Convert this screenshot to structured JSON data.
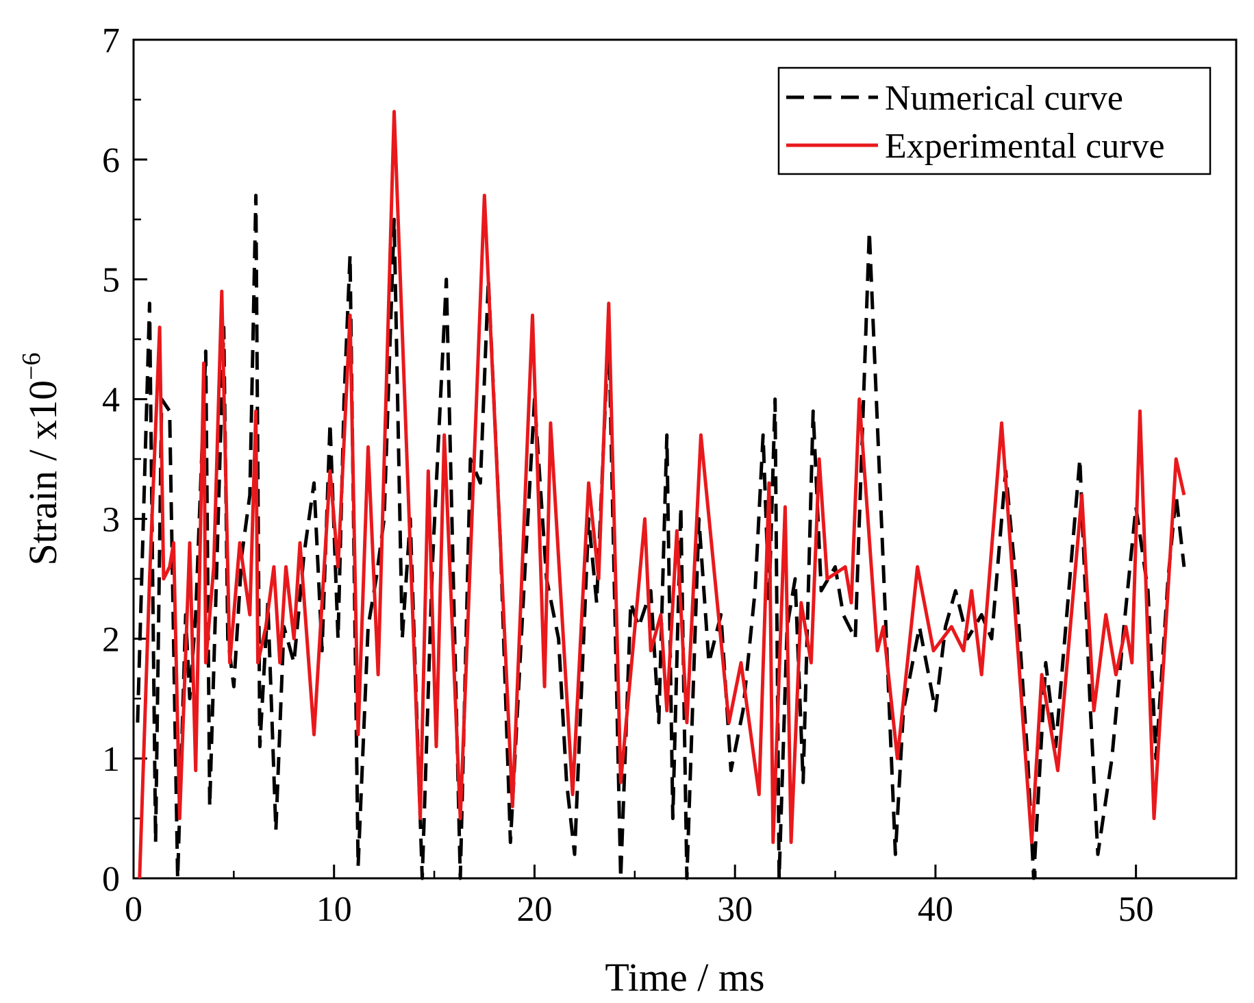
{
  "chart_data": {
    "type": "line",
    "title": "",
    "xlabel": "Time / ms",
    "ylabel_base": "Strain / x10",
    "ylabel_exp": "−6",
    "xlim": [
      0,
      55
    ],
    "ylim": [
      0,
      7
    ],
    "x_ticks": [
      0,
      10,
      20,
      30,
      40,
      50
    ],
    "x_tick_labels": [
      "0",
      "10",
      "20",
      "30",
      "40",
      "50"
    ],
    "y_ticks": [
      0,
      1,
      2,
      3,
      4,
      5,
      6,
      7
    ],
    "y_tick_labels": [
      "0",
      "1",
      "2",
      "3",
      "4",
      "5",
      "6",
      "7"
    ],
    "grid": false,
    "legend_position": "top-right",
    "series": [
      {
        "name": "Numerical curve",
        "color": "#000000",
        "style": "dashed",
        "points": [
          [
            0.2,
            1.3
          ],
          [
            0.8,
            4.8
          ],
          [
            1.1,
            0.3
          ],
          [
            1.4,
            4.0
          ],
          [
            1.8,
            3.9
          ],
          [
            2.2,
            0.0
          ],
          [
            2.6,
            2.2
          ],
          [
            2.8,
            1.5
          ],
          [
            3.1,
            2.2
          ],
          [
            3.6,
            4.4
          ],
          [
            3.8,
            0.6
          ],
          [
            4.1,
            2.3
          ],
          [
            4.5,
            4.6
          ],
          [
            4.7,
            2.0
          ],
          [
            5.0,
            1.6
          ],
          [
            5.4,
            2.7
          ],
          [
            5.8,
            3.2
          ],
          [
            6.1,
            5.7
          ],
          [
            6.3,
            1.1
          ],
          [
            6.7,
            2.3
          ],
          [
            7.1,
            0.4
          ],
          [
            7.5,
            2.1
          ],
          [
            8.0,
            1.8
          ],
          [
            8.5,
            2.7
          ],
          [
            9.0,
            3.3
          ],
          [
            9.4,
            1.9
          ],
          [
            9.8,
            3.8
          ],
          [
            10.2,
            2.0
          ],
          [
            10.5,
            4.0
          ],
          [
            10.8,
            5.2
          ],
          [
            11.2,
            0.1
          ],
          [
            11.7,
            2.1
          ],
          [
            12.1,
            2.5
          ],
          [
            12.5,
            3.0
          ],
          [
            13.0,
            5.5
          ],
          [
            13.4,
            2.0
          ],
          [
            13.8,
            3.0
          ],
          [
            14.4,
            0.0
          ],
          [
            14.9,
            2.6
          ],
          [
            15.6,
            5.0
          ],
          [
            16.3,
            0.0
          ],
          [
            16.8,
            3.5
          ],
          [
            17.3,
            3.3
          ],
          [
            17.7,
            5.0
          ],
          [
            18.3,
            2.8
          ],
          [
            18.8,
            0.3
          ],
          [
            19.5,
            2.5
          ],
          [
            20.0,
            4.0
          ],
          [
            20.6,
            2.5
          ],
          [
            21.2,
            2.0
          ],
          [
            21.6,
            0.8
          ],
          [
            22.0,
            0.2
          ],
          [
            22.7,
            3.0
          ],
          [
            23.1,
            2.3
          ],
          [
            23.7,
            4.6
          ],
          [
            24.3,
            0.0
          ],
          [
            24.8,
            2.3
          ],
          [
            25.2,
            2.1
          ],
          [
            25.8,
            2.4
          ],
          [
            26.2,
            1.3
          ],
          [
            26.6,
            3.7
          ],
          [
            26.9,
            0.5
          ],
          [
            27.3,
            3.1
          ],
          [
            27.6,
            0.0
          ],
          [
            28.2,
            3.0
          ],
          [
            28.7,
            1.8
          ],
          [
            29.3,
            2.2
          ],
          [
            29.8,
            0.9
          ],
          [
            30.4,
            1.4
          ],
          [
            31.0,
            2.4
          ],
          [
            31.4,
            3.7
          ],
          [
            31.7,
            2.3
          ],
          [
            32.0,
            4.0
          ],
          [
            32.2,
            0.0
          ],
          [
            32.6,
            2.1
          ],
          [
            33.0,
            2.5
          ],
          [
            33.4,
            0.8
          ],
          [
            33.9,
            3.9
          ],
          [
            34.3,
            2.4
          ],
          [
            35.0,
            2.6
          ],
          [
            35.4,
            2.2
          ],
          [
            36.0,
            2.0
          ],
          [
            36.7,
            5.4
          ],
          [
            37.3,
            3.0
          ],
          [
            38.0,
            0.2
          ],
          [
            38.4,
            1.4
          ],
          [
            39.2,
            2.1
          ],
          [
            40.0,
            1.4
          ],
          [
            40.5,
            2.1
          ],
          [
            41.0,
            2.4
          ],
          [
            41.6,
            2.0
          ],
          [
            42.3,
            2.2
          ],
          [
            42.8,
            2.0
          ],
          [
            43.5,
            3.4
          ],
          [
            44.0,
            2.5
          ],
          [
            44.6,
            1.0
          ],
          [
            44.9,
            0.0
          ],
          [
            45.5,
            1.8
          ],
          [
            46.0,
            1.1
          ],
          [
            46.6,
            2.3
          ],
          [
            47.2,
            3.5
          ],
          [
            47.7,
            1.5
          ],
          [
            48.1,
            0.2
          ],
          [
            48.8,
            1.0
          ],
          [
            49.4,
            2.1
          ],
          [
            50.0,
            3.1
          ],
          [
            50.6,
            2.4
          ],
          [
            51.0,
            1.0
          ],
          [
            51.6,
            2.5
          ],
          [
            52.0,
            3.2
          ],
          [
            52.4,
            2.6
          ]
        ]
      },
      {
        "name": "Experimental curve",
        "color": "#e8191c",
        "style": "solid",
        "points": [
          [
            0.3,
            0.0
          ],
          [
            0.8,
            2.5
          ],
          [
            1.3,
            4.6
          ],
          [
            1.5,
            2.5
          ],
          [
            1.8,
            2.6
          ],
          [
            2.0,
            2.8
          ],
          [
            2.3,
            0.5
          ],
          [
            2.8,
            2.8
          ],
          [
            3.1,
            0.9
          ],
          [
            3.5,
            4.3
          ],
          [
            3.6,
            1.8
          ],
          [
            4.0,
            2.6
          ],
          [
            4.4,
            4.9
          ],
          [
            4.8,
            1.8
          ],
          [
            5.3,
            2.8
          ],
          [
            5.8,
            2.2
          ],
          [
            6.1,
            3.9
          ],
          [
            6.2,
            1.8
          ],
          [
            6.6,
            2.1
          ],
          [
            7.0,
            2.6
          ],
          [
            7.3,
            1.8
          ],
          [
            7.6,
            2.6
          ],
          [
            8.0,
            2.0
          ],
          [
            8.3,
            2.8
          ],
          [
            9.0,
            1.2
          ],
          [
            9.8,
            3.4
          ],
          [
            10.2,
            2.6
          ],
          [
            10.8,
            4.7
          ],
          [
            11.2,
            1.2
          ],
          [
            11.7,
            3.6
          ],
          [
            12.2,
            1.7
          ],
          [
            13.0,
            6.4
          ],
          [
            14.3,
            0.5
          ],
          [
            14.7,
            3.4
          ],
          [
            15.1,
            1.1
          ],
          [
            15.5,
            3.7
          ],
          [
            16.3,
            0.5
          ],
          [
            17.5,
            5.7
          ],
          [
            18.9,
            0.6
          ],
          [
            19.9,
            4.7
          ],
          [
            20.5,
            1.6
          ],
          [
            20.8,
            3.8
          ],
          [
            21.9,
            0.7
          ],
          [
            22.7,
            3.3
          ],
          [
            23.2,
            2.5
          ],
          [
            23.7,
            4.8
          ],
          [
            24.3,
            0.8
          ],
          [
            25.5,
            3.0
          ],
          [
            25.8,
            1.9
          ],
          [
            26.3,
            2.2
          ],
          [
            26.6,
            1.4
          ],
          [
            27.1,
            2.9
          ],
          [
            27.6,
            1.3
          ],
          [
            28.3,
            3.7
          ],
          [
            29.7,
            1.3
          ],
          [
            30.3,
            1.8
          ],
          [
            31.2,
            0.7
          ],
          [
            31.7,
            3.3
          ],
          [
            31.9,
            0.3
          ],
          [
            32.5,
            3.1
          ],
          [
            32.8,
            0.3
          ],
          [
            33.3,
            2.3
          ],
          [
            33.8,
            1.8
          ],
          [
            34.2,
            3.5
          ],
          [
            34.6,
            2.5
          ],
          [
            35.5,
            2.6
          ],
          [
            35.8,
            2.3
          ],
          [
            36.2,
            4.0
          ],
          [
            37.1,
            1.9
          ],
          [
            37.4,
            2.1
          ],
          [
            38.1,
            1.0
          ],
          [
            39.1,
            2.6
          ],
          [
            39.9,
            1.9
          ],
          [
            40.8,
            2.1
          ],
          [
            41.4,
            1.9
          ],
          [
            41.8,
            2.4
          ],
          [
            42.3,
            1.7
          ],
          [
            43.3,
            3.8
          ],
          [
            44.8,
            0.3
          ],
          [
            45.3,
            1.7
          ],
          [
            46.1,
            0.9
          ],
          [
            47.3,
            3.2
          ],
          [
            47.9,
            1.4
          ],
          [
            48.5,
            2.2
          ],
          [
            49.0,
            1.7
          ],
          [
            49.5,
            2.1
          ],
          [
            49.8,
            1.8
          ],
          [
            50.2,
            3.9
          ],
          [
            50.9,
            0.5
          ],
          [
            52.0,
            3.5
          ],
          [
            52.4,
            3.2
          ]
        ]
      }
    ]
  }
}
